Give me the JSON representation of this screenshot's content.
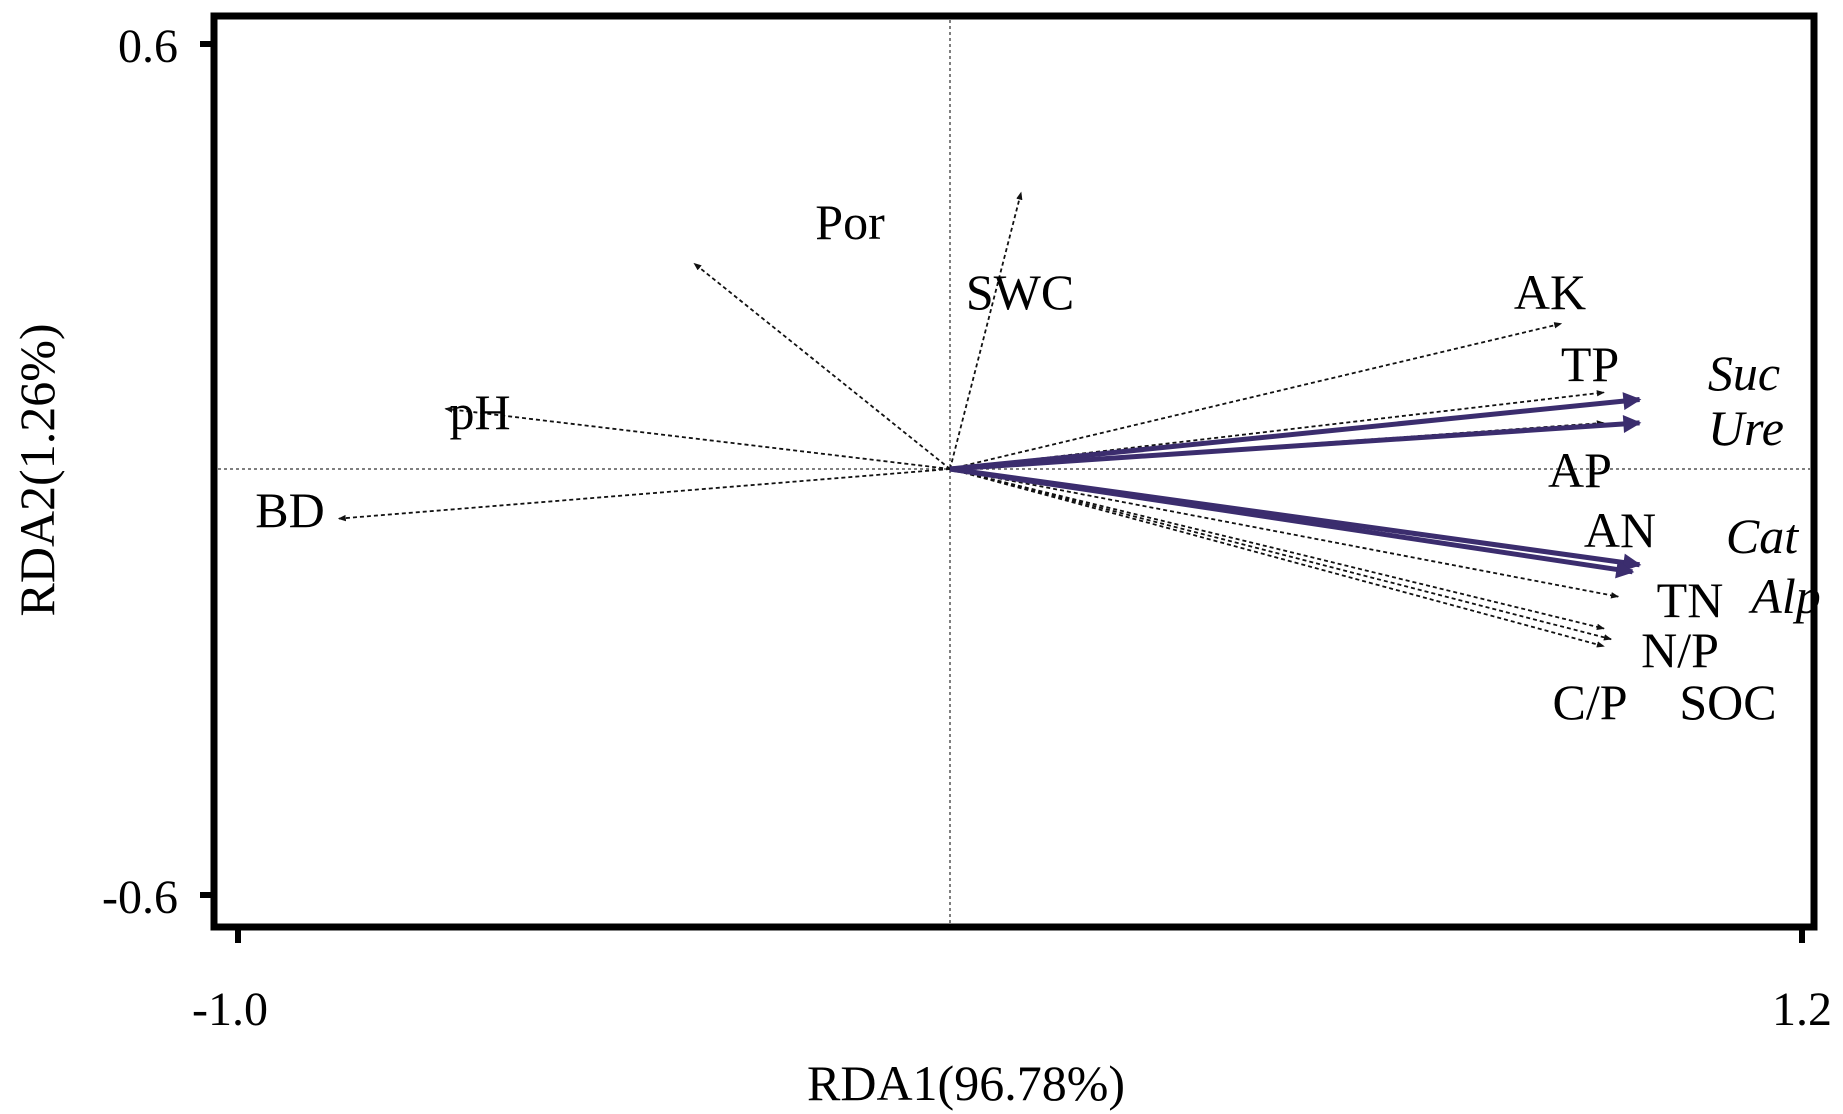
{
  "chart_data": {
    "type": "scatter",
    "subtype": "rda-biplot",
    "title": "",
    "xlabel": "RDA1(96.78%)",
    "ylabel": "RDA2(1.26%)",
    "xlim": [
      -1.0,
      1.2
    ],
    "ylim": [
      -0.6,
      0.6
    ],
    "x_ticks": [
      {
        "value": -1.0,
        "label": "-1.0"
      },
      {
        "value": 1.2,
        "label": "1.2"
      }
    ],
    "y_ticks": [
      {
        "value": 0.6,
        "label": "0.6"
      },
      {
        "value": -0.6,
        "label": "-0.6"
      }
    ],
    "reference_lines": {
      "x": 0,
      "y": 0,
      "style": "dotted"
    },
    "grid": false,
    "series": [
      {
        "role": "environmental variables",
        "line_style": "dashed",
        "color": "#111111",
        "vectors": [
          {
            "label": "SWC",
            "x": 0.1,
            "y": 0.39
          },
          {
            "label": "Por",
            "x": -0.36,
            "y": 0.29
          },
          {
            "label": "pH",
            "x": -0.71,
            "y": 0.085
          },
          {
            "label": "BD",
            "x": -0.86,
            "y": -0.07
          },
          {
            "label": "AK",
            "x": 0.86,
            "y": 0.205
          },
          {
            "label": "TP",
            "x": 0.92,
            "y": 0.108
          },
          {
            "label": "AP",
            "x": 0.92,
            "y": 0.065
          },
          {
            "label": "AN",
            "x": 0.96,
            "y": -0.145
          },
          {
            "label": "TN",
            "x": 0.94,
            "y": -0.18
          },
          {
            "label": "N/P",
            "x": 0.92,
            "y": -0.225
          },
          {
            "label": "C/P",
            "x": 0.92,
            "y": -0.25
          },
          {
            "label": "SOC",
            "x": 0.93,
            "y": -0.24
          }
        ]
      },
      {
        "role": "enzyme activities",
        "line_style": "solid",
        "color": "#3b2d6e",
        "label_style": "italic",
        "vectors": [
          {
            "label": "Suc",
            "x": 0.97,
            "y": 0.098
          },
          {
            "label": "Ure",
            "x": 0.97,
            "y": 0.065
          },
          {
            "label": "Cat",
            "x": 0.97,
            "y": -0.135
          },
          {
            "label": "Alp",
            "x": 0.96,
            "y": -0.145
          }
        ]
      }
    ]
  }
}
